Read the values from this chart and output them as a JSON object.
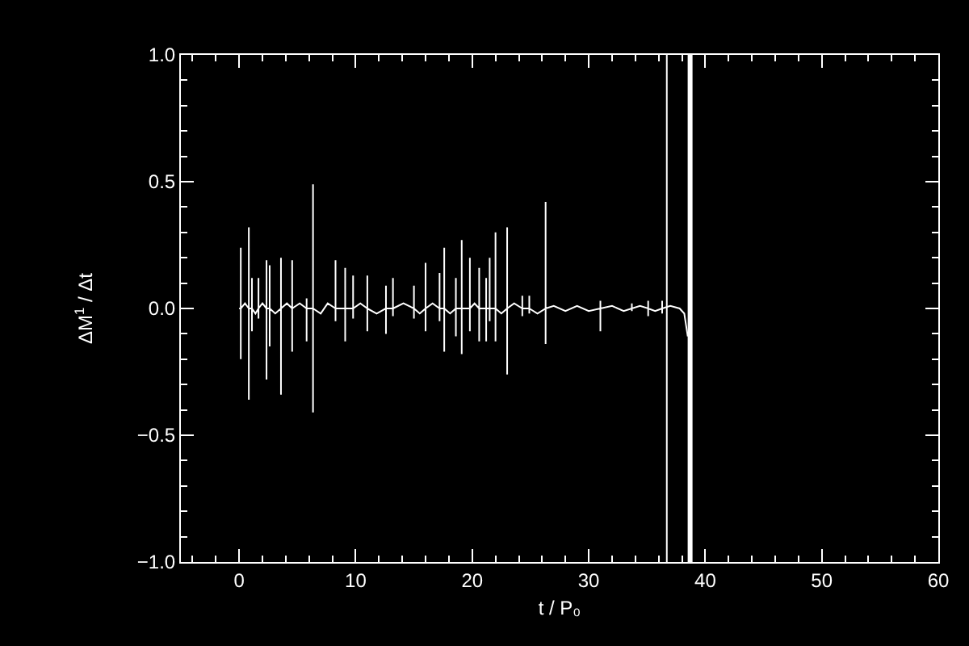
{
  "chart_data": {
    "type": "line",
    "xlabel": "t / P₀",
    "ylabel": "ΔM$^{1}$ / Δt",
    "xlim": [
      -5,
      60
    ],
    "ylim": [
      -1,
      1
    ],
    "xticks": [
      0,
      10,
      20,
      30,
      40,
      50,
      60,
      {
        "value": -4,
        "label": null
      },
      {
        "value": -2,
        "label": null
      },
      {
        "value": 2,
        "label": null
      },
      {
        "value": 4,
        "label": null
      },
      {
        "value": 6,
        "label": null
      },
      {
        "value": 8,
        "label": null
      },
      {
        "value": 12,
        "label": null
      },
      {
        "value": 14,
        "label": null
      },
      {
        "value": 16,
        "label": null
      },
      {
        "value": 18,
        "label": null
      },
      {
        "value": 22,
        "label": null
      },
      {
        "value": 24,
        "label": null
      },
      {
        "value": 26,
        "label": null
      },
      {
        "value": 28,
        "label": null
      },
      {
        "value": 32,
        "label": null
      },
      {
        "value": 34,
        "label": null
      },
      {
        "value": 36,
        "label": null
      },
      {
        "value": 38,
        "label": null
      },
      {
        "value": 42,
        "label": null
      },
      {
        "value": 44,
        "label": null
      },
      {
        "value": 46,
        "label": null
      },
      {
        "value": 48,
        "label": null
      },
      {
        "value": 52,
        "label": null
      },
      {
        "value": 54,
        "label": null
      },
      {
        "value": 56,
        "label": null
      },
      {
        "value": 58,
        "label": null
      }
    ],
    "yticks": [
      {
        "value": -1,
        "label": "−1.0"
      },
      {
        "value": -0.5,
        "label": "−0.5"
      },
      {
        "value": 0,
        "label": "0.0"
      },
      {
        "value": 0.5,
        "label": "0.5"
      },
      {
        "value": 1,
        "label": "1.0"
      },
      {
        "value": -0.9,
        "label": null
      },
      {
        "value": -0.8,
        "label": null
      },
      {
        "value": -0.7,
        "label": null
      },
      {
        "value": -0.6,
        "label": null
      },
      {
        "value": -0.4,
        "label": null
      },
      {
        "value": -0.3,
        "label": null
      },
      {
        "value": -0.2,
        "label": null
      },
      {
        "value": -0.1,
        "label": null
      },
      {
        "value": 0.1,
        "label": null
      },
      {
        "value": 0.2,
        "label": null
      },
      {
        "value": 0.3,
        "label": null
      },
      {
        "value": 0.4,
        "label": null
      },
      {
        "value": 0.6,
        "label": null
      },
      {
        "value": 0.7,
        "label": null
      },
      {
        "value": 0.8,
        "label": null
      },
      {
        "value": 0.9,
        "label": null
      }
    ],
    "grid": false,
    "marker": "none",
    "line_style": "solid",
    "ref_lines": [
      {
        "axis": "x",
        "value": 36.7,
        "color": "#ffffff"
      },
      {
        "axis": "x",
        "value": 38.7,
        "color": "#ffffff"
      }
    ],
    "series": [
      {
        "color": "#ffffff",
        "x": [
          0,
          0.14,
          0.14,
          0.14,
          0.14,
          0.5,
          0.83,
          0.83,
          0.83,
          0.83,
          1.1,
          1.1,
          1.1,
          1.1,
          1.4,
          1.66,
          1.66,
          1.66,
          1.66,
          2.0,
          2.35,
          2.35,
          2.35,
          2.35,
          2.62,
          2.62,
          2.62,
          2.62,
          3.1,
          3.59,
          3.59,
          3.59,
          3.59,
          4.1,
          4.55,
          4.55,
          4.55,
          4.55,
          5.2,
          5.79,
          5.79,
          5.79,
          5.79,
          6.34,
          6.34,
          6.34,
          6.34,
          7.0,
          7.6,
          8.27,
          8.27,
          8.27,
          8.27,
          9.1,
          9.1,
          9.1,
          9.1,
          9.78,
          9.78,
          9.78,
          9.78,
          10.4,
          11.0,
          11.0,
          11.0,
          11.0,
          11.8,
          12.6,
          12.6,
          12.6,
          12.6,
          13.2,
          13.2,
          13.2,
          13.2,
          14.1,
          15.0,
          15.0,
          15.0,
          15.0,
          15.5,
          16.0,
          16.0,
          16.0,
          16.0,
          16.6,
          17.2,
          17.2,
          17.2,
          17.2,
          17.6,
          17.6,
          17.6,
          17.6,
          18.1,
          18.6,
          18.6,
          18.6,
          18.6,
          19.1,
          19.1,
          19.1,
          19.1,
          19.8,
          19.8,
          19.8,
          19.8,
          20.2,
          20.6,
          20.6,
          20.6,
          20.6,
          21.2,
          21.2,
          21.2,
          21.2,
          21.5,
          21.5,
          21.5,
          21.5,
          22.0,
          22.0,
          22.0,
          22.0,
          22.5,
          23.0,
          23.0,
          23.0,
          23.0,
          23.6,
          24.3,
          24.3,
          24.3,
          24.3,
          24.9,
          24.9,
          24.9,
          24.9,
          25.6,
          26.3,
          26.3,
          26.3,
          26.3,
          27.0,
          28.0,
          29.0,
          30.0,
          31.0,
          31.0,
          31.0,
          31.0,
          32.0,
          33.0,
          33.7,
          33.7,
          33.7,
          33.7,
          34.4,
          35.1,
          35.1,
          35.1,
          35.1,
          35.7,
          36.3,
          36.3,
          36.3,
          36.3,
          37.0,
          37.8,
          38.2,
          38.5
        ],
        "values": [
          0,
          0,
          0.24,
          -0.2,
          0,
          0.02,
          0,
          0.32,
          -0.36,
          0,
          0,
          0.12,
          -0.09,
          0,
          -0.02,
          0,
          0.12,
          -0.04,
          0,
          0.02,
          0,
          0.19,
          -0.28,
          0,
          0,
          0.17,
          -0.15,
          0,
          -0.02,
          0,
          0.2,
          -0.34,
          0,
          0.02,
          0,
          0.19,
          -0.17,
          0,
          0.02,
          0,
          0.04,
          -0.13,
          0,
          0,
          0.49,
          -0.41,
          0,
          -0.02,
          0.02,
          0,
          0.19,
          -0.05,
          0,
          0,
          0.16,
          -0.13,
          0,
          0,
          0.13,
          -0.04,
          0,
          0.02,
          0,
          0.13,
          -0.09,
          0,
          -0.02,
          0,
          0.09,
          -0.1,
          0,
          0,
          0.12,
          -0.03,
          0,
          0.02,
          0,
          0.09,
          -0.04,
          0,
          -0.02,
          0,
          0.18,
          -0.09,
          0,
          0.02,
          0,
          0.14,
          -0.05,
          0,
          0,
          0.24,
          -0.17,
          0,
          -0.02,
          0,
          0.12,
          -0.11,
          0,
          0,
          0.27,
          -0.18,
          0,
          0,
          0.2,
          -0.09,
          0,
          0.02,
          0,
          0.16,
          -0.13,
          0,
          0,
          0.12,
          -0.13,
          0,
          0,
          0.2,
          -0.05,
          0,
          0,
          0.3,
          -0.13,
          0,
          -0.02,
          0,
          0.32,
          -0.26,
          0,
          0.02,
          0,
          0.05,
          -0.03,
          0,
          0,
          0.05,
          -0.02,
          0,
          -0.02,
          0,
          0.42,
          -0.14,
          0,
          0.01,
          -0.01,
          0.01,
          -0.01,
          0,
          0.03,
          -0.09,
          0,
          0.01,
          -0.01,
          0,
          0.02,
          -0.01,
          0,
          0.01,
          0,
          0.03,
          -0.03,
          0,
          -0.01,
          0,
          0.03,
          -0.02,
          0,
          0.01,
          0,
          -0.02,
          -0.11
        ]
      }
    ]
  }
}
